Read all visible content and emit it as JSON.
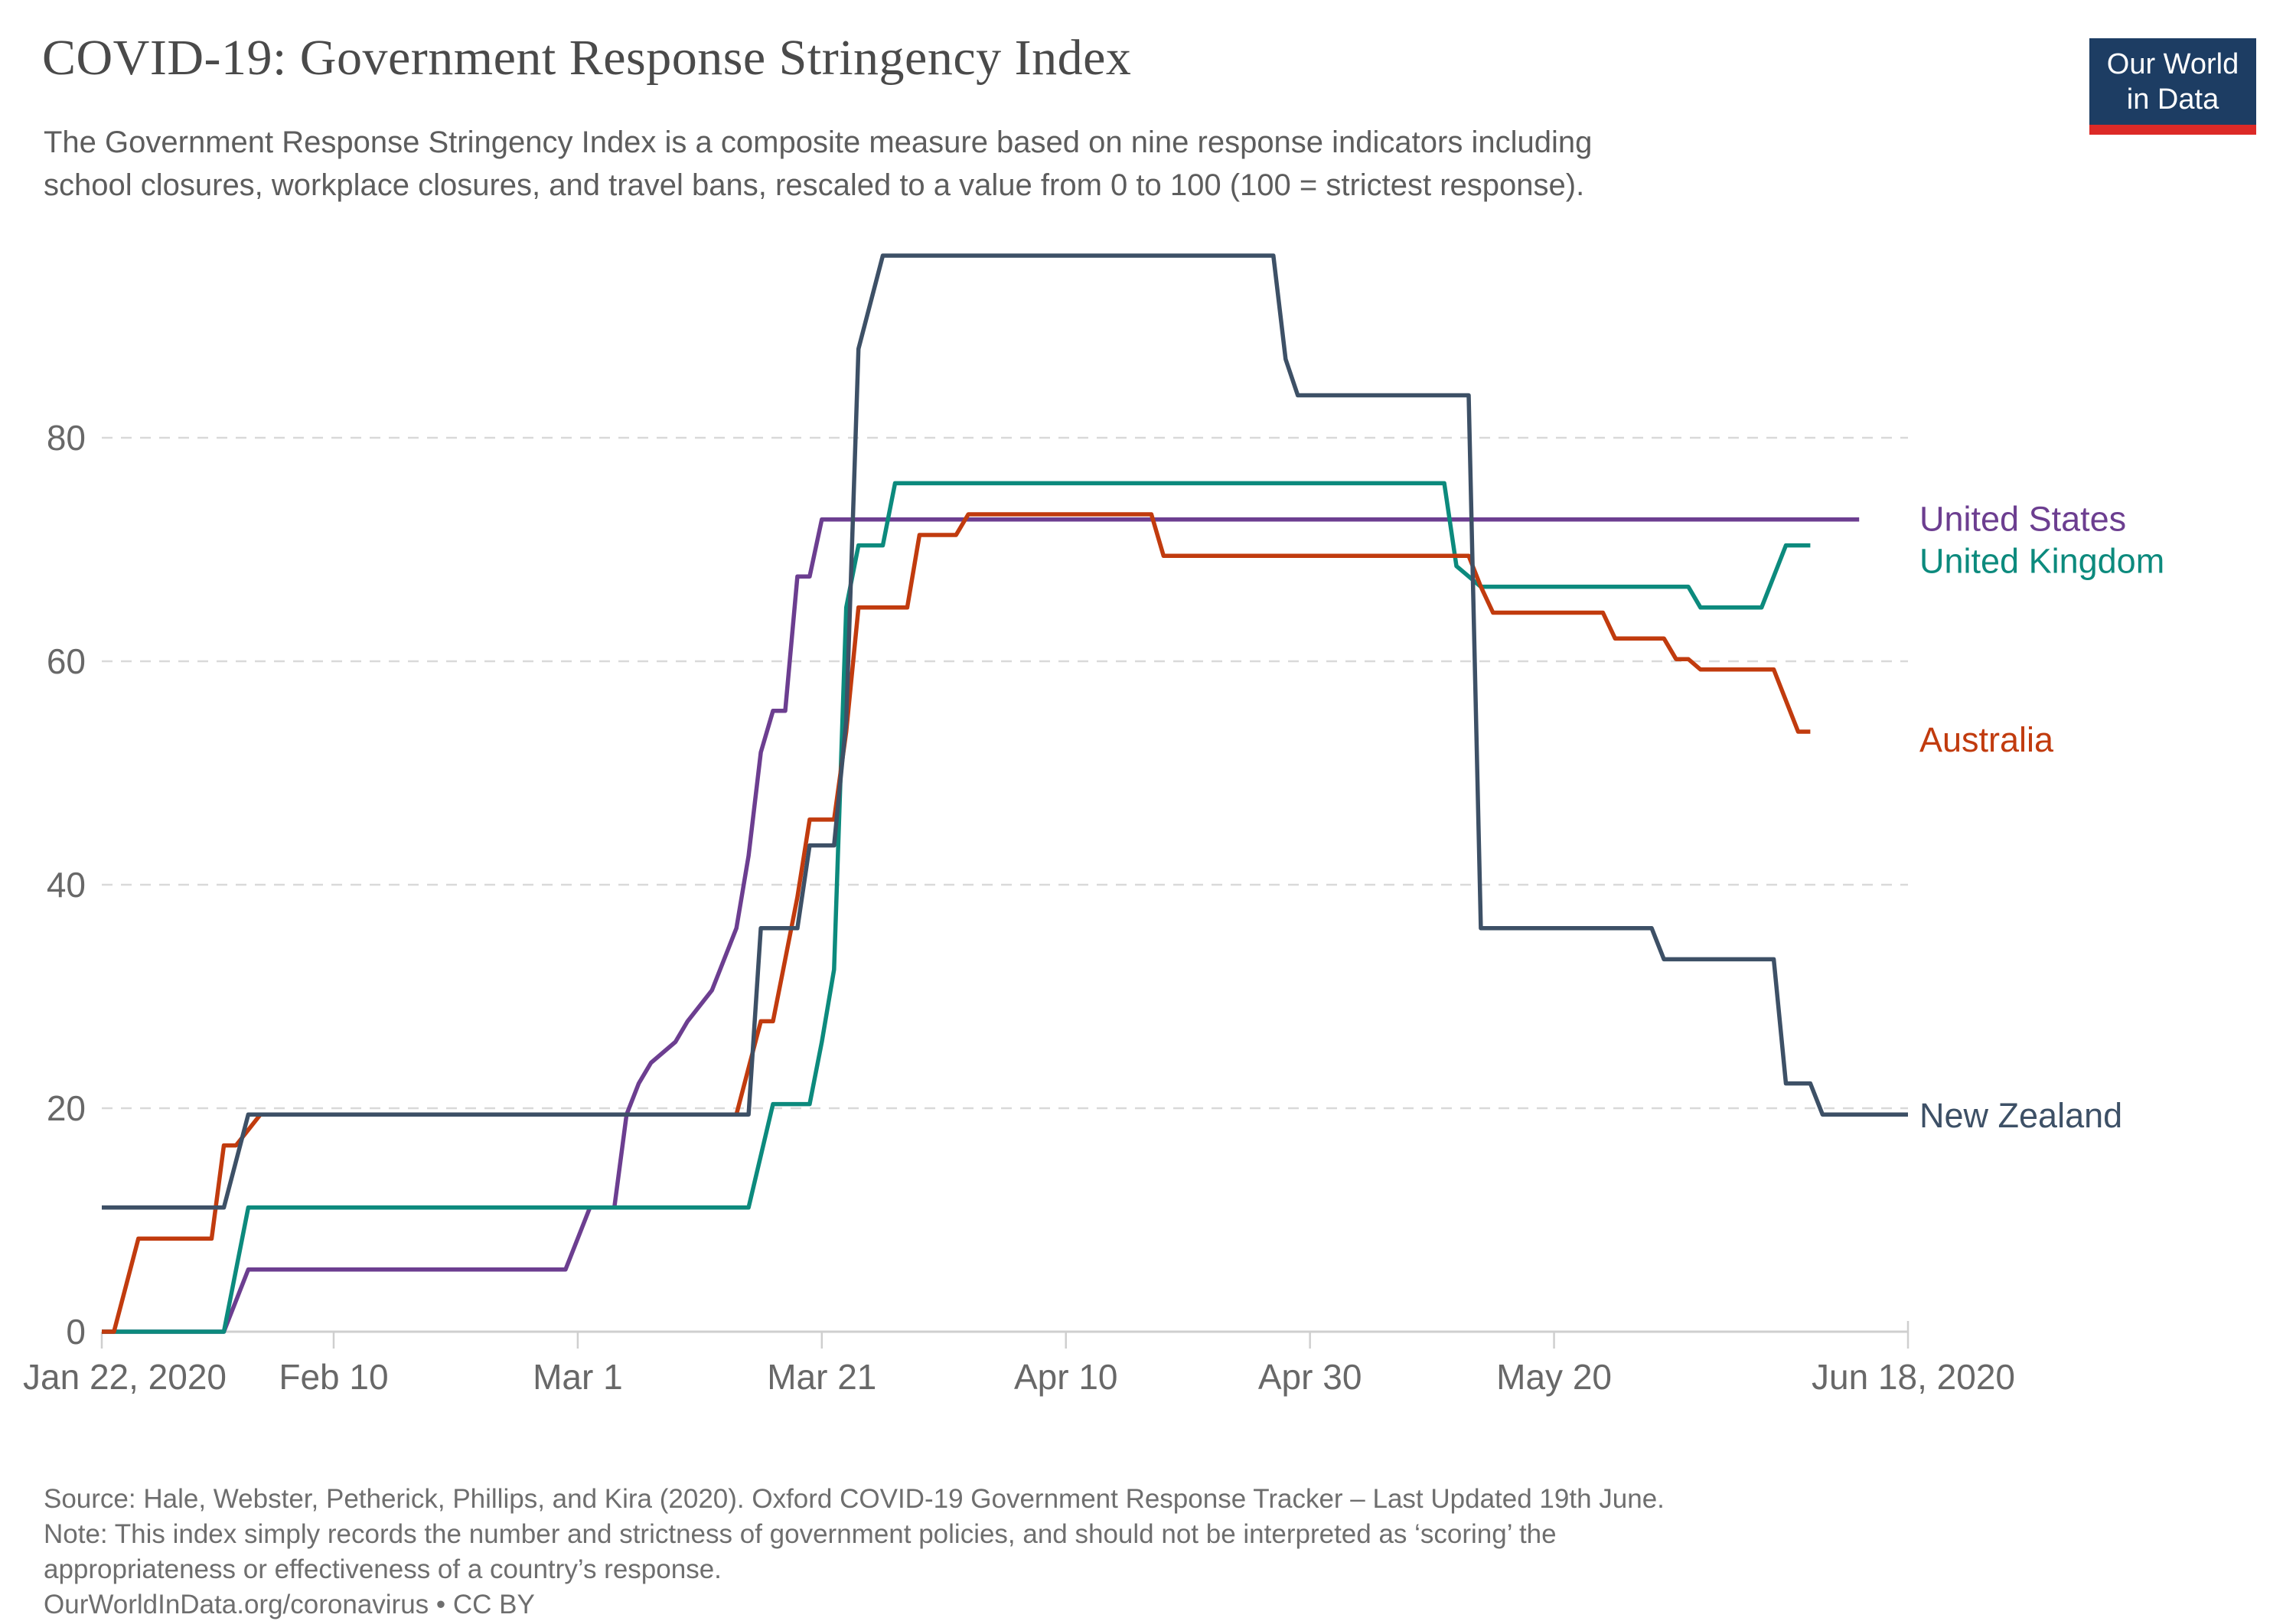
{
  "header": {
    "title": "COVID-19: Government Response Stringency Index",
    "subtitle_line1": "The Government Response Stringency Index is a composite measure based on nine response indicators including",
    "subtitle_line2": "school closures, workplace closures, and travel bans, rescaled to a value from 0 to 100 (100 = strictest response)."
  },
  "logo": {
    "line1": "Our World",
    "line2": "in Data",
    "bg_color": "#1d3d63",
    "bar_color": "#dc2a27"
  },
  "chart_data": {
    "type": "line",
    "title": "COVID-19: Government Response Stringency Index",
    "xlabel": "",
    "ylabel": "",
    "ylim": [
      0,
      100
    ],
    "grid": "dashed-horizontal",
    "legend_position": "right-of-line-ends",
    "x_axis": {
      "start_date": "Jan 22, 2020",
      "end_date": "Jun 18, 2020",
      "ticks": [
        {
          "day": 0,
          "label": "Jan 22, 2020"
        },
        {
          "day": 19,
          "label": "Feb 10"
        },
        {
          "day": 39,
          "label": "Mar 1"
        },
        {
          "day": 59,
          "label": "Mar 21"
        },
        {
          "day": 79,
          "label": "Apr 10"
        },
        {
          "day": 99,
          "label": "Apr 30"
        },
        {
          "day": 119,
          "label": "May 20"
        },
        {
          "day": 148,
          "label": "Jun 18, 2020"
        }
      ]
    },
    "y_axis": {
      "ticks": [
        0,
        20,
        40,
        60,
        80
      ]
    },
    "series": [
      {
        "name": "United States",
        "color": "#6c3e90",
        "points": [
          [
            0,
            0
          ],
          [
            10,
            0
          ],
          [
            12,
            5.56
          ],
          [
            38,
            5.56
          ],
          [
            40,
            11.11
          ],
          [
            42,
            11.11
          ],
          [
            43,
            19.44
          ],
          [
            44,
            22.22
          ],
          [
            45,
            24.07
          ],
          [
            47,
            25.93
          ],
          [
            48,
            27.78
          ],
          [
            50,
            30.56
          ],
          [
            52,
            36.11
          ],
          [
            53,
            42.59
          ],
          [
            54,
            51.85
          ],
          [
            55,
            55.56
          ],
          [
            56,
            55.56
          ],
          [
            57,
            67.59
          ],
          [
            58,
            67.59
          ],
          [
            59,
            72.69
          ],
          [
            144,
            72.69
          ]
        ]
      },
      {
        "name": "United Kingdom",
        "color": "#0c8a7d",
        "points": [
          [
            0,
            0
          ],
          [
            10,
            0
          ],
          [
            12,
            11.11
          ],
          [
            53,
            11.11
          ],
          [
            55,
            20.37
          ],
          [
            58,
            20.37
          ],
          [
            59,
            25.93
          ],
          [
            60,
            32.41
          ],
          [
            61,
            64.81
          ],
          [
            62,
            70.37
          ],
          [
            64,
            70.37
          ],
          [
            65,
            75.93
          ],
          [
            110,
            75.93
          ],
          [
            111,
            68.52
          ],
          [
            113,
            66.67
          ],
          [
            130,
            66.67
          ],
          [
            131,
            64.81
          ],
          [
            136,
            64.81
          ],
          [
            138,
            70.37
          ],
          [
            140,
            70.37
          ]
        ]
      },
      {
        "name": "Australia",
        "color": "#c13b0e",
        "points": [
          [
            0,
            0
          ],
          [
            1,
            0
          ],
          [
            3,
            8.33
          ],
          [
            9,
            8.33
          ],
          [
            10,
            16.67
          ],
          [
            11,
            16.67
          ],
          [
            13,
            19.44
          ],
          [
            52,
            19.44
          ],
          [
            54,
            27.78
          ],
          [
            55,
            27.78
          ],
          [
            56,
            33.33
          ],
          [
            57,
            38.89
          ],
          [
            58,
            45.83
          ],
          [
            60,
            45.83
          ],
          [
            61,
            53.7
          ],
          [
            62,
            64.81
          ],
          [
            66,
            64.81
          ],
          [
            67,
            71.3
          ],
          [
            70,
            71.3
          ],
          [
            71,
            73.15
          ],
          [
            86,
            73.15
          ],
          [
            87,
            69.44
          ],
          [
            112,
            69.44
          ],
          [
            113,
            66.67
          ],
          [
            114,
            64.35
          ],
          [
            123,
            64.35
          ],
          [
            124,
            62.04
          ],
          [
            128,
            62.04
          ],
          [
            129,
            60.19
          ],
          [
            130,
            60.19
          ],
          [
            131,
            59.26
          ],
          [
            137,
            59.26
          ],
          [
            139,
            53.7
          ],
          [
            140,
            53.7
          ]
        ]
      },
      {
        "name": "New Zealand",
        "color": "#3d5066",
        "points": [
          [
            0,
            11.11
          ],
          [
            10,
            11.11
          ],
          [
            12,
            19.44
          ],
          [
            53,
            19.44
          ],
          [
            54,
            36.11
          ],
          [
            57,
            36.11
          ],
          [
            58,
            43.52
          ],
          [
            60,
            43.52
          ],
          [
            61,
            54.63
          ],
          [
            62,
            87.96
          ],
          [
            64,
            96.3
          ],
          [
            96,
            96.3
          ],
          [
            97,
            87.04
          ],
          [
            98,
            83.8
          ],
          [
            112,
            83.8
          ],
          [
            113,
            36.11
          ],
          [
            127,
            36.11
          ],
          [
            128,
            33.33
          ],
          [
            137,
            33.33
          ],
          [
            138,
            22.22
          ],
          [
            140,
            22.22
          ],
          [
            141,
            19.44
          ],
          [
            148,
            19.44
          ]
        ]
      }
    ]
  },
  "footer": {
    "source_line": "Source: Hale, Webster, Petherick, Phillips, and Kira (2020). Oxford COVID-19 Government Response Tracker – Last Updated 19th June.",
    "note_line1": "Note: This index simply records the number and strictness of government policies, and should not be interpreted as ‘scoring’ the",
    "note_line2": "appropriateness or effectiveness of a country’s response.",
    "credit_line": "OurWorldInData.org/coronavirus • CC BY"
  }
}
